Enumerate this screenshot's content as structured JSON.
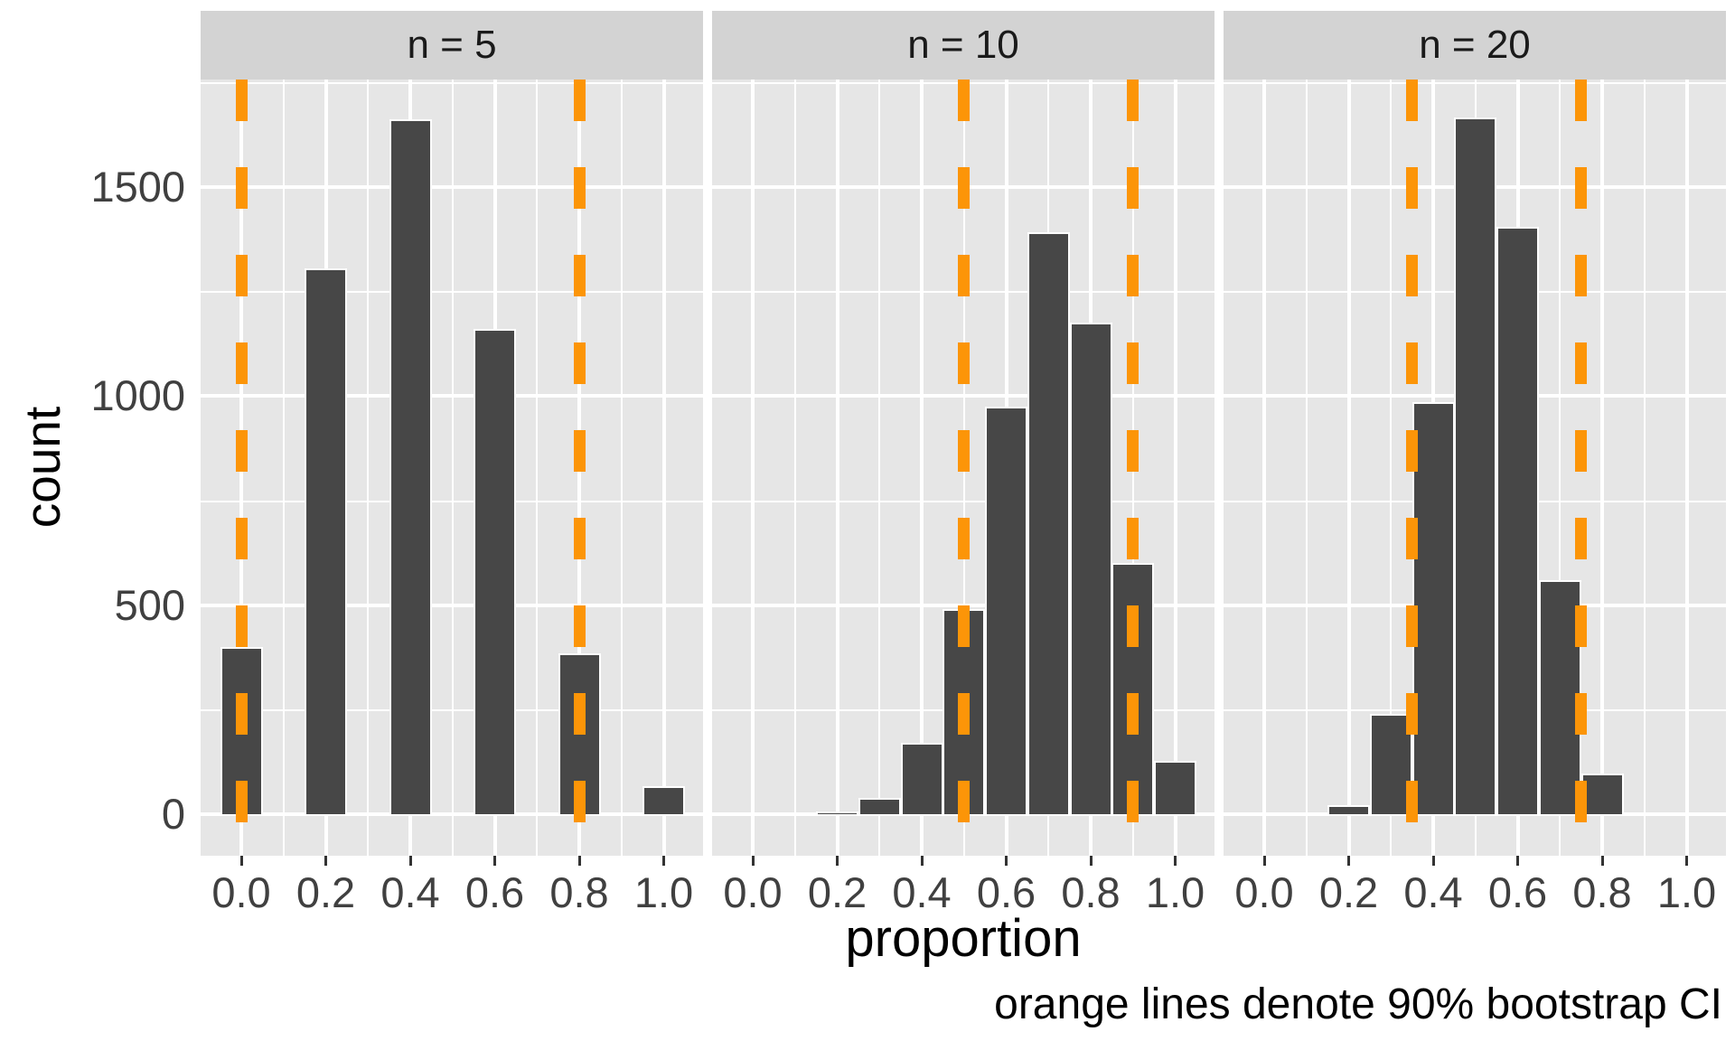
{
  "figure": {
    "x_axis_title": "proportion",
    "y_axis_title": "count",
    "caption": "orange lines denote 90% bootstrap CI"
  },
  "chart_data": {
    "type": "bar",
    "subtype": "faceted-histogram",
    "title": "",
    "xlabel": "proportion",
    "ylabel": "count",
    "caption": "orange lines denote 90% bootstrap CI",
    "facet_variable": "n",
    "binwidth": 0.1,
    "grid": true,
    "legend": "none",
    "xlim": [
      -0.11,
      1.11
    ],
    "ylim": [
      -100,
      1760
    ],
    "x_ticks": [
      0.0,
      0.2,
      0.4,
      0.6,
      0.8,
      1.0
    ],
    "x_tick_labels": [
      "0.0",
      "0.2",
      "0.4",
      "0.6",
      "0.8",
      "1.0"
    ],
    "y_ticks": [
      0,
      500,
      1000,
      1500
    ],
    "y_tick_labels": [
      "0",
      "500",
      "1000",
      "1500"
    ],
    "colors": {
      "bar_fill": "#474747",
      "bar_stroke": "#ffffff",
      "panel_bg": "#E6E6E6",
      "strip_bg": "#D3D3D3",
      "gridline": "#ffffff",
      "ci_line": "#FC9508",
      "axis_text": "#404040",
      "strip_text": "#1a1a1a"
    },
    "facets": [
      {
        "label": "n = 5",
        "ci": [
          0.0,
          0.8
        ],
        "bins": [
          {
            "x": 0.0,
            "count": 400
          },
          {
            "x": 0.2,
            "count": 1305
          },
          {
            "x": 0.4,
            "count": 1660
          },
          {
            "x": 0.6,
            "count": 1160
          },
          {
            "x": 0.8,
            "count": 385
          },
          {
            "x": 1.0,
            "count": 68
          }
        ]
      },
      {
        "label": "n = 10",
        "ci": [
          0.5,
          0.9
        ],
        "bins": [
          {
            "x": 0.1,
            "count": 4
          },
          {
            "x": 0.2,
            "count": 6
          },
          {
            "x": 0.3,
            "count": 40
          },
          {
            "x": 0.4,
            "count": 170
          },
          {
            "x": 0.5,
            "count": 490
          },
          {
            "x": 0.6,
            "count": 975
          },
          {
            "x": 0.7,
            "count": 1390
          },
          {
            "x": 0.8,
            "count": 1175
          },
          {
            "x": 0.9,
            "count": 600
          },
          {
            "x": 1.0,
            "count": 128
          }
        ]
      },
      {
        "label": "n = 20",
        "ci": [
          0.35,
          0.75
        ],
        "bins": [
          {
            "x": 0.2,
            "count": 22
          },
          {
            "x": 0.3,
            "count": 240
          },
          {
            "x": 0.4,
            "count": 985
          },
          {
            "x": 0.5,
            "count": 1665
          },
          {
            "x": 0.6,
            "count": 1405
          },
          {
            "x": 0.7,
            "count": 560
          },
          {
            "x": 0.8,
            "count": 97
          }
        ]
      }
    ]
  }
}
